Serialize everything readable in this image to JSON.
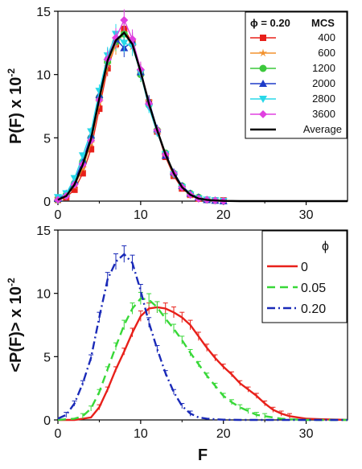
{
  "chart_data": [
    {
      "type": "scatter",
      "panel": "top",
      "ylabel": "P(F) x 10",
      "ylabel_exp": "-2",
      "xlim": [
        0,
        35
      ],
      "ylim": [
        0,
        15
      ],
      "xticks": [
        0,
        10,
        20,
        30
      ],
      "yticks": [
        0,
        5,
        10,
        15
      ],
      "legend_title": "ϕ = 0.20",
      "legend_header": "MCS",
      "legend_position": "top-right",
      "x": [
        0,
        1,
        2,
        3,
        4,
        5,
        6,
        7,
        8,
        9,
        10,
        11,
        12,
        13,
        14,
        15,
        16,
        17,
        18,
        19,
        20
      ],
      "series": [
        {
          "name": "400",
          "color": "#e8201a",
          "marker": "square",
          "values": [
            0.1,
            0.3,
            0.9,
            2.2,
            4.1,
            7.3,
            10.5,
            12.4,
            13.6,
            12.5,
            10.2,
            7.8,
            5.5,
            3.5,
            2.0,
            1.0,
            0.5,
            0.2,
            0.1,
            0.05,
            0.05
          ]
        },
        {
          "name": "600",
          "color": "#f2922e",
          "marker": "star",
          "values": [
            0.2,
            0.4,
            1.2,
            2.6,
            4.6,
            7.8,
            10.8,
            12.3,
            13.3,
            12.2,
            10.3,
            7.9,
            5.6,
            3.6,
            2.1,
            1.1,
            0.5,
            0.2,
            0.1,
            0.05,
            0.0
          ]
        },
        {
          "name": "1200",
          "color": "#3cc83c",
          "marker": "circle",
          "values": [
            0.1,
            0.5,
            1.4,
            3.1,
            5.0,
            8.2,
            11.0,
            12.6,
            13.2,
            12.4,
            10.0,
            7.6,
            5.6,
            3.8,
            2.2,
            1.2,
            0.6,
            0.3,
            0.1,
            0.05,
            0.0
          ]
        },
        {
          "name": "2000",
          "color": "#1e3cc8",
          "marker": "triangle-up",
          "values": [
            0.2,
            0.6,
            1.6,
            3.2,
            5.2,
            8.4,
            11.4,
            12.8,
            12.1,
            12.6,
            10.2,
            7.9,
            5.7,
            3.6,
            2.3,
            1.2,
            0.6,
            0.3,
            0.1,
            0.05,
            0.0
          ]
        },
        {
          "name": "2800",
          "color": "#28d8e8",
          "marker": "triangle-down",
          "values": [
            0.3,
            0.6,
            1.8,
            3.6,
            5.5,
            8.7,
            11.5,
            13.2,
            12.5,
            12.2,
            10.1,
            7.4,
            5.4,
            3.7,
            2.1,
            1.1,
            0.5,
            0.2,
            0.1,
            0.05,
            0.0
          ]
        },
        {
          "name": "3600",
          "color": "#e040e0",
          "marker": "diamond",
          "values": [
            0.1,
            0.4,
            1.3,
            2.9,
            4.8,
            8.0,
            11.2,
            12.9,
            14.3,
            12.8,
            10.4,
            7.7,
            5.6,
            3.7,
            2.2,
            1.1,
            0.5,
            0.2,
            0.1,
            0.05,
            0.0
          ]
        }
      ],
      "average": {
        "name": "Average",
        "color": "#000000",
        "x": [
          0,
          1,
          2,
          3,
          4,
          5,
          6,
          7,
          8,
          9,
          10,
          11,
          12,
          13,
          14,
          15,
          16,
          17,
          18,
          19,
          20,
          22,
          25,
          30,
          35
        ],
        "values": [
          0.1,
          0.4,
          1.3,
          2.9,
          4.9,
          8.1,
          11.1,
          12.7,
          13.3,
          12.4,
          10.2,
          7.7,
          5.6,
          3.7,
          2.2,
          1.1,
          0.5,
          0.2,
          0.1,
          0.05,
          0.02,
          0.0,
          0.0,
          0.0,
          0.0
        ]
      }
    },
    {
      "type": "line",
      "panel": "bottom",
      "xlabel": "F",
      "ylabel": "<P(F)> x 10",
      "ylabel_exp": "-2",
      "xlim": [
        0,
        35
      ],
      "ylim": [
        0,
        15
      ],
      "xticks": [
        0,
        10,
        20,
        30
      ],
      "yticks": [
        0,
        5,
        10,
        15
      ],
      "legend_title": "ϕ",
      "legend_position": "top-right",
      "series": [
        {
          "name": "0",
          "color": "#e8201a",
          "dash": "solid",
          "x": [
            0,
            2,
            4,
            5,
            6,
            7,
            8,
            9,
            10,
            11,
            12,
            13,
            14,
            15,
            16,
            17,
            18,
            19,
            20,
            21,
            22,
            23,
            24,
            25,
            26,
            27,
            28,
            29,
            30,
            32,
            35
          ],
          "values": [
            0,
            0,
            0.2,
            1.0,
            2.4,
            4.0,
            5.4,
            6.9,
            8.2,
            8.8,
            8.9,
            8.8,
            8.5,
            8.1,
            7.5,
            6.6,
            5.7,
            4.9,
            4.2,
            3.6,
            2.9,
            2.4,
            1.9,
            1.3,
            0.8,
            0.5,
            0.3,
            0.2,
            0.1,
            0.05,
            0.0
          ]
        },
        {
          "name": "0.05",
          "color": "#38d838",
          "dash": "dash",
          "x": [
            0,
            2,
            3,
            4,
            5,
            6,
            7,
            8,
            9,
            10,
            11,
            12,
            13,
            14,
            15,
            16,
            17,
            18,
            19,
            20,
            21,
            22,
            23,
            24,
            25,
            26,
            27,
            28,
            30,
            32,
            35
          ],
          "values": [
            0,
            0.1,
            0.3,
            0.9,
            2.2,
            4.0,
            5.8,
            7.5,
            8.8,
            9.6,
            9.5,
            8.9,
            8.0,
            7.2,
            6.3,
            5.3,
            4.4,
            3.5,
            2.7,
            1.9,
            1.4,
            1.0,
            0.7,
            0.4,
            0.3,
            0.2,
            0.1,
            0.05,
            0.0,
            0.0,
            0.0
          ]
        },
        {
          "name": "0.20",
          "color": "#1a2ab8",
          "dash": "dashdot",
          "x": [
            0,
            1,
            2,
            3,
            4,
            5,
            6,
            7,
            8,
            9,
            10,
            11,
            12,
            13,
            14,
            15,
            16,
            17,
            18,
            19,
            20,
            22,
            25,
            30,
            35
          ],
          "values": [
            0.1,
            0.4,
            1.3,
            2.9,
            4.9,
            8.1,
            11.1,
            12.5,
            13.1,
            12.4,
            10.2,
            7.7,
            5.6,
            3.7,
            2.2,
            1.1,
            0.5,
            0.2,
            0.1,
            0.05,
            0.02,
            0.0,
            0.0,
            0.0,
            0.0
          ]
        }
      ]
    }
  ]
}
